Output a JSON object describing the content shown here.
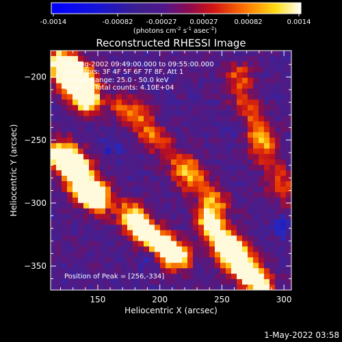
{
  "colorbar": {
    "ticks": [
      "-0.0014",
      "-0.00082",
      "-0.00027",
      "0.00027",
      "0.00082",
      "0.0014"
    ],
    "unit_label": "(photons cm",
    "unit_sup1": "-2",
    "unit_mid": " s",
    "unit_sup2": "-1",
    "unit_end": " asec",
    "unit_sup3": "-2",
    "unit_close": ")"
  },
  "title": "Reconstructed RHESSI Image",
  "info": {
    "line1": "18-Aug-2002 09:49:00.000 to 09:55:00.000",
    "line2": "Detectors: 3F 4F 5F 6F 7F 8F, Att 1",
    "line3": "Energy Range: 25.0 - 50.0 keV",
    "line4": "Clean     Total counts: 4.10E+04"
  },
  "peak_label": "Position of Peak = [256,-334]",
  "timestamp": "1-May-2022 03:58",
  "chart_data": {
    "type": "heatmap",
    "title": "Reconstructed RHESSI Image",
    "xlabel": "Heliocentric X (arcsec)",
    "ylabel": "Heliocentric Y (arcsec)",
    "xlim": [
      112,
      306
    ],
    "ylim": [
      -369,
      -179
    ],
    "x_ticks": [
      150,
      200,
      250,
      300
    ],
    "y_ticks": [
      -200,
      -250,
      -300,
      -350
    ],
    "colorscale": "RHESSI std gamma (blue-purple-red-orange-yellow-white)",
    "colorbar_range": [
      -0.0014,
      0.0014
    ],
    "peak_position": [
      256,
      -334
    ],
    "features": [
      {
        "name": "upper-left blob",
        "x": [
          118,
          145
        ],
        "y": [
          -186,
          -218
        ],
        "level": 0.85
      },
      {
        "name": "diagonal ribbon",
        "x": [
          170,
          248
        ],
        "y": [
          -220,
          -300
        ],
        "level": 0.75
      },
      {
        "name": "right ribbon",
        "x": [
          260,
          300
        ],
        "y": [
          -195,
          -290
        ],
        "level": 0.55
      },
      {
        "name": "left yellow blob",
        "x": [
          120,
          150
        ],
        "y": [
          -260,
          -300
        ],
        "level": 0.9
      },
      {
        "name": "center blob",
        "x": [
          175,
          215
        ],
        "y": [
          -310,
          -345
        ],
        "level": 0.8
      },
      {
        "name": "peak blob",
        "x": [
          240,
          282
        ],
        "y": [
          -315,
          -369
        ],
        "level": 1.0
      }
    ]
  }
}
